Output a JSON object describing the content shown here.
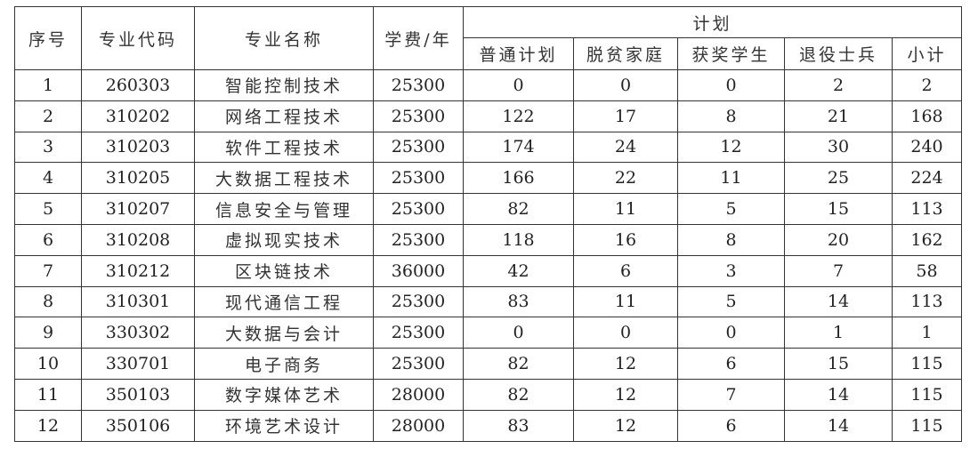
{
  "headers": {
    "index": "序号",
    "code": "专业代码",
    "name": "专业名称",
    "fee": "学费/年",
    "plan": "计划",
    "sub": [
      "普通计划",
      "脱贫家庭",
      "获奖学生",
      "退役士兵",
      "小计"
    ]
  },
  "rows": [
    [
      "1",
      "260303",
      "智能控制技术",
      "25300",
      "0",
      "0",
      "0",
      "2",
      "2"
    ],
    [
      "2",
      "310202",
      "网络工程技术",
      "25300",
      "122",
      "17",
      "8",
      "21",
      "168"
    ],
    [
      "3",
      "310203",
      "软件工程技术",
      "25300",
      "174",
      "24",
      "12",
      "30",
      "240"
    ],
    [
      "4",
      "310205",
      "大数据工程技术",
      "25300",
      "166",
      "22",
      "11",
      "25",
      "224"
    ],
    [
      "5",
      "310207",
      "信息安全与管理",
      "25300",
      "82",
      "11",
      "5",
      "15",
      "113"
    ],
    [
      "6",
      "310208",
      "虚拟现实技术",
      "25300",
      "118",
      "16",
      "8",
      "20",
      "162"
    ],
    [
      "7",
      "310212",
      "区块链技术",
      "36000",
      "42",
      "6",
      "3",
      "7",
      "58"
    ],
    [
      "8",
      "310301",
      "现代通信工程",
      "25300",
      "83",
      "11",
      "5",
      "14",
      "113"
    ],
    [
      "9",
      "330302",
      "大数据与会计",
      "25300",
      "0",
      "0",
      "0",
      "1",
      "1"
    ],
    [
      "10",
      "330701",
      "电子商务",
      "25300",
      "82",
      "12",
      "6",
      "15",
      "115"
    ],
    [
      "11",
      "350103",
      "数字媒体艺术",
      "28000",
      "82",
      "12",
      "7",
      "14",
      "115"
    ],
    [
      "12",
      "350106",
      "环境艺术设计",
      "28000",
      "83",
      "12",
      "6",
      "14",
      "115"
    ]
  ]
}
